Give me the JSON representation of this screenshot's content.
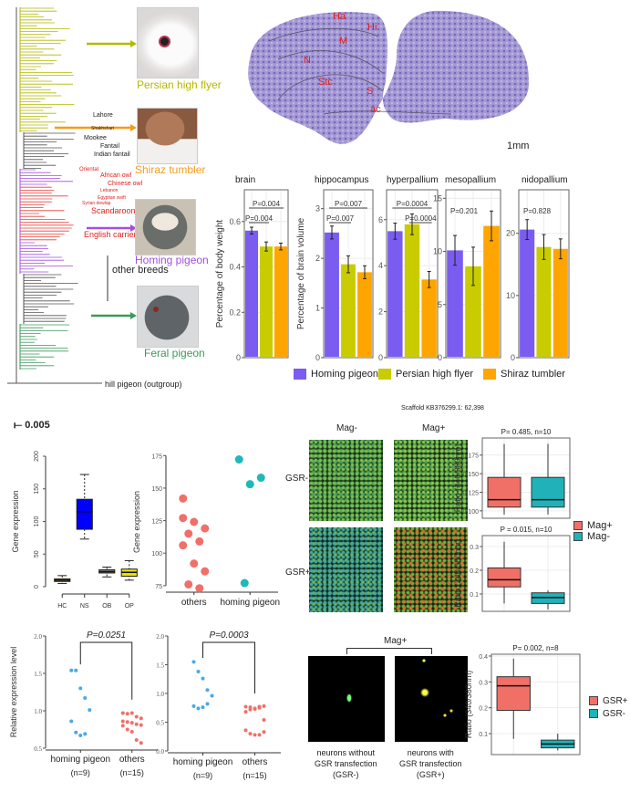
{
  "tree": {
    "scale_label": "0.005",
    "outgroup_label": "hill pigeon (outgroup)",
    "other_breeds_label": "other breeds",
    "breeds_black": [
      "Lahore",
      "Shakhshari",
      "Mookee",
      "Fantail",
      "Indian fantail"
    ],
    "breeds_red": [
      "Oriental",
      "African owl",
      "Chinese owl",
      "Lebanon",
      "Egyptian swift",
      "Syrian dewlap",
      "Scandaroon",
      "English carrier"
    ],
    "groups": [
      {
        "label": "Persian high flyer",
        "color": "#b5b800"
      },
      {
        "label": "Shiraz tumbler",
        "color": "#f39c1d"
      },
      {
        "label": "Homing pigeon",
        "color": "#a34fe0"
      },
      {
        "label": "Feral pigeon",
        "color": "#3a9a5a"
      }
    ],
    "highlight_color": "#e8403a"
  },
  "brain_section": {
    "regions": [
      "Ha",
      "Hi",
      "M",
      "N",
      "Stc",
      "S",
      "ac"
    ],
    "scale_bar": "1mm"
  },
  "legend_bars": [
    {
      "label": "Homing pigeon",
      "color": "#7b5cf0"
    },
    {
      "label": "Persian high flyer",
      "color": "#c8cc00"
    },
    {
      "label": "Shiraz tumbler",
      "color": "#ffa500"
    }
  ],
  "scaffold_label": "Scaffold KB376299.1: 62,398",
  "micro": {
    "col_labels": [
      "Mag-",
      "Mag+"
    ],
    "row_labels": [
      "GSR-",
      "GSR+"
    ],
    "bottom_header": "Mag+",
    "captions": [
      "neurons without GSR transfection (GSR-)",
      "neurons with GSR transfection (GSR+)"
    ],
    "caption_lines": [
      [
        "neurons without",
        "GSR transfection",
        "(GSR-)"
      ],
      [
        "neurons with",
        "GSR transfection",
        "(GSR+)"
      ]
    ]
  },
  "legend_mag": [
    {
      "label": "Mag+",
      "color": "#f07068"
    },
    {
      "label": "Mag-",
      "color": "#20b2b8"
    }
  ],
  "legend_gsr": [
    {
      "label": "GSR+",
      "color": "#f07068"
    },
    {
      "label": "GSR-",
      "color": "#20b2b8"
    }
  ],
  "chart_data": [
    {
      "id": "brain",
      "type": "bar",
      "title": "brain",
      "ylabel": "Percentage of body weight",
      "ylim": [
        0,
        0.74
      ],
      "ticks": [
        0,
        0.2,
        0.4,
        0.6
      ],
      "categories": [
        "Homing pigeon",
        "Persian high flyer",
        "Shiraz tumbler"
      ],
      "values": [
        0.56,
        0.49,
        0.49
      ],
      "errors": [
        0.015,
        0.02,
        0.015
      ],
      "colors": [
        "#7b5cf0",
        "#c8cc00",
        "#ffa500"
      ],
      "pvalues": [
        {
          "text": "P=0.004",
          "pair": [
            0,
            2
          ],
          "level": 2
        },
        {
          "text": "P=0.004",
          "pair": [
            0,
            1
          ],
          "level": 1
        }
      ]
    },
    {
      "id": "hippocampus",
      "type": "bar",
      "title": "hippocampus",
      "ylabel": "Percentage of brain volume",
      "ylim": [
        0,
        3.38
      ],
      "ticks": [
        0,
        1,
        2,
        3
      ],
      "categories": [
        "Homing pigeon",
        "Persian high flyer",
        "Shiraz tumbler"
      ],
      "values": [
        2.52,
        1.88,
        1.72
      ],
      "errors": [
        0.13,
        0.17,
        0.13
      ],
      "colors": [
        "#7b5cf0",
        "#c8cc00",
        "#ffa500"
      ],
      "pvalues": [
        {
          "text": "P=0.007",
          "pair": [
            0,
            2
          ],
          "level": 2
        },
        {
          "text": "P=0.007",
          "pair": [
            0,
            1
          ],
          "level": 1
        }
      ]
    },
    {
      "id": "hyperpallium",
      "type": "bar",
      "title": "hyperpallium",
      "ylabel": "",
      "ylim": [
        0,
        7.3
      ],
      "ticks": [
        0,
        2,
        4,
        6
      ],
      "categories": [
        "Homing pigeon",
        "Persian high flyer",
        "Shiraz tumbler"
      ],
      "values": [
        5.5,
        5.8,
        3.4
      ],
      "errors": [
        0.35,
        0.45,
        0.35
      ],
      "colors": [
        "#7b5cf0",
        "#c8cc00",
        "#ffa500"
      ],
      "pvalues": [
        {
          "text": "P=0.0004",
          "pair": [
            0,
            2
          ],
          "level": 2
        },
        {
          "text": "P=0.0004",
          "pair": [
            1,
            2
          ],
          "level": 1
        }
      ]
    },
    {
      "id": "mesopallium",
      "type": "bar",
      "title": "mesopallium",
      "ylabel": "",
      "ylim": [
        0,
        15.8
      ],
      "ticks": [
        0,
        5,
        10,
        15
      ],
      "categories": [
        "Homing pigeon",
        "Persian high flyer",
        "Shiraz tumbler"
      ],
      "values": [
        10.1,
        8.6,
        12.4
      ],
      "errors": [
        1.4,
        1.8,
        1.4
      ],
      "colors": [
        "#7b5cf0",
        "#c8cc00",
        "#ffa500"
      ],
      "pvalues": [
        {
          "text": "P=0.201",
          "pair": null,
          "level": 2
        }
      ]
    },
    {
      "id": "nidopallium",
      "type": "bar",
      "title": "nidopallium",
      "ylabel": "",
      "ylim": [
        0,
        27
      ],
      "ticks": [
        0,
        10,
        20
      ],
      "categories": [
        "Homing pigeon",
        "Persian high flyer",
        "Shiraz tumbler"
      ],
      "values": [
        20.6,
        17.8,
        17.5
      ],
      "errors": [
        1.6,
        2.0,
        1.6
      ],
      "colors": [
        "#7b5cf0",
        "#c8cc00",
        "#ffa500"
      ],
      "pvalues": [
        {
          "text": "P=0.828",
          "pair": null,
          "level": 2
        }
      ]
    },
    {
      "id": "gene_box",
      "type": "box",
      "ylabel": "Gene expression",
      "ylim": [
        0,
        200
      ],
      "ticks": [
        0,
        50,
        100,
        150,
        200
      ],
      "categories": [
        "HC",
        "NS",
        "OB",
        "OP"
      ],
      "boxes": [
        {
          "min": 5,
          "q1": 8,
          "median": 10,
          "q3": 12,
          "max": 17
        },
        {
          "min": 73,
          "q1": 88,
          "median": 115,
          "q3": 134,
          "max": 172
        },
        {
          "min": 15,
          "q1": 21,
          "median": 23,
          "q3": 26,
          "max": 30
        },
        {
          "min": 10,
          "q1": 16,
          "median": 22,
          "q3": 27,
          "max": 40
        }
      ],
      "colors": [
        "#c68a2a",
        "#0000ff",
        "#8a8a8a",
        "#e8e000"
      ]
    },
    {
      "id": "gene_scatter",
      "type": "scatter",
      "ylabel": "Gene expression",
      "ylim": [
        70,
        178
      ],
      "ticks": [
        75,
        100,
        125,
        150,
        175
      ],
      "categories": [
        "others",
        "homing pigeon"
      ],
      "colors": [
        "#f07068",
        "#20b8b8"
      ],
      "groups": [
        [
          127,
          124,
          119,
          115,
          109,
          106,
          92,
          86,
          76,
          73,
          142
        ],
        [
          172,
          153,
          158,
          77
        ]
      ]
    },
    {
      "id": "dot1",
      "type": "dot",
      "title": "P=0.0251",
      "ylabel": "Relative expression level",
      "ylim": [
        0.5,
        2.0
      ],
      "ticks": [
        0.5,
        1.0,
        1.5,
        2.0
      ],
      "categories": [
        "homing pigeon",
        "others"
      ],
      "n_labels": [
        "(n=9)",
        "(n=15)"
      ],
      "colors": [
        "#4aa8e8",
        "#f07068"
      ],
      "groups": [
        [
          1.54,
          1.54,
          1.3,
          1.17,
          1.01,
          0.86,
          0.71,
          0.67,
          0.69
        ],
        [
          0.97,
          0.96,
          0.97,
          0.92,
          0.9,
          0.86,
          0.85,
          0.84,
          0.82,
          0.81,
          0.8,
          0.75,
          0.72,
          0.61,
          0.57
        ]
      ]
    },
    {
      "id": "dot2",
      "type": "dot",
      "title": "P=0.0003",
      "ylabel": "",
      "ylim": [
        0,
        2.0
      ],
      "ticks": [
        0.0,
        0.5,
        1.0,
        1.5,
        2.0
      ],
      "categories": [
        "homing pigeon",
        "others"
      ],
      "n_labels": [
        "(n=9)",
        "(n=15)"
      ],
      "colors": [
        "#4aa8e8",
        "#f07068"
      ],
      "groups": [
        [
          1.55,
          1.38,
          1.26,
          1.06,
          0.96,
          0.78,
          0.74,
          0.76,
          0.82
        ],
        [
          0.77,
          0.76,
          0.74,
          0.77,
          0.78,
          0.68,
          0.72,
          0.73,
          0.75,
          0.54,
          0.36,
          0.3,
          0.28,
          0.28,
          0.33
        ]
      ]
    },
    {
      "id": "ratio1",
      "type": "box",
      "title": "P= 0.485, n=10",
      "ylabel": "Ratio (340/380nm)",
      "ylim": [
        0.09,
        0.198
      ],
      "ticks": [
        0.1,
        0.125,
        0.15,
        0.175
      ],
      "tick_labels": [
        "0.100",
        "0.125",
        "0.150",
        "0.175"
      ],
      "categories": [
        "Mag+",
        "Mag-"
      ],
      "boxes": [
        {
          "min": 0.095,
          "q1": 0.105,
          "median": 0.115,
          "q3": 0.145,
          "max": 0.19
        },
        {
          "min": 0.095,
          "q1": 0.105,
          "median": 0.115,
          "q3": 0.145,
          "max": 0.19
        }
      ],
      "colors": [
        "#f07068",
        "#20b2b8"
      ],
      "grid": true
    },
    {
      "id": "ratio2",
      "type": "box",
      "title": "P = 0.015, n=10",
      "ylabel": "Ratio (340/380nm)",
      "ylim": [
        0.027,
        0.346
      ],
      "ticks": [
        0.1,
        0.2,
        0.3
      ],
      "categories": [
        "Mag+",
        "Mag-"
      ],
      "boxes": [
        {
          "min": 0.06,
          "q1": 0.13,
          "median": 0.16,
          "q3": 0.21,
          "max": 0.32
        },
        {
          "min": 0.035,
          "q1": 0.06,
          "median": 0.085,
          "q3": 0.105,
          "max": 0.115
        }
      ],
      "colors": [
        "#f07068",
        "#20b2b8"
      ],
      "grid": true
    },
    {
      "id": "ratio3",
      "type": "box",
      "title": "P= 0.002, n=8",
      "ylabel": "Ratio (340/380nm)",
      "ylim": [
        0.019,
        0.407
      ],
      "ticks": [
        0.1,
        0.2,
        0.3,
        0.4
      ],
      "categories": [
        "GSR+",
        "GSR-"
      ],
      "boxes": [
        {
          "min": 0.08,
          "q1": 0.19,
          "median": 0.285,
          "q3": 0.32,
          "max": 0.39
        },
        {
          "min": 0.035,
          "q1": 0.045,
          "median": 0.06,
          "q3": 0.075,
          "max": 0.1
        }
      ],
      "colors": [
        "#f07068",
        "#20b2b8"
      ],
      "grid": true
    }
  ]
}
